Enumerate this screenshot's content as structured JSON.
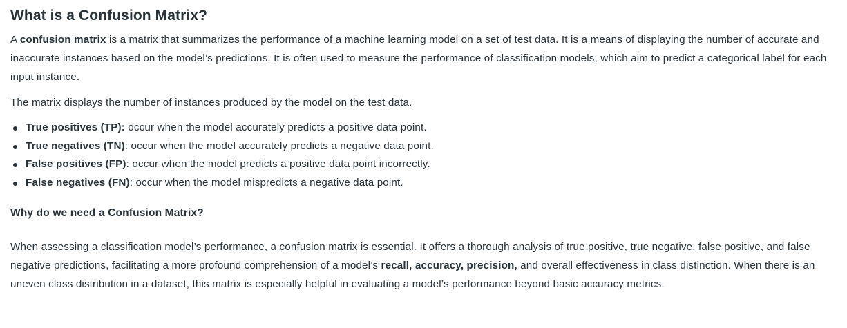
{
  "title": "What is a Confusion Matrix?",
  "intro": {
    "part1": "A ",
    "bold1": "confusion matrix",
    "part2": " is a matrix that summarizes the performance of a machine learning model on a set of test data. It is a means of displaying the number of accurate and inaccurate instances based on the model’s predictions. It is often used to measure the performance of classification models, which aim to predict a categorical label for each input instance."
  },
  "para2": "The matrix displays the number of instances produced by the model on the test data.",
  "bullets": [
    {
      "term": "True positives (TP):",
      "desc": " occur when the model accurately predicts a positive data point."
    },
    {
      "term": "True negatives (TN)",
      "desc": ": occur when the model accurately predicts a negative data point."
    },
    {
      "term": "False positives (FP)",
      "desc": ": occur when the model predicts a positive data point incorrectly."
    },
    {
      "term": "False negatives (FN)",
      "desc": ": occur when the model mispredicts a negative data point."
    }
  ],
  "subheading": "Why do we need a Confusion Matrix?",
  "para3": {
    "part1": "When assessing a classification model’s performance, a confusion matrix is essential. It offers a thorough analysis of true positive, true negative, false positive, and false negative predictions, facilitating a more profound comprehension of a model’s ",
    "bold1": "recall, accuracy, precision,",
    "part2": " and overall effectiveness in class distinction. When there is an uneven class distribution in a dataset, this matrix is especially helpful in evaluating a model’s performance beyond basic accuracy metrics."
  }
}
